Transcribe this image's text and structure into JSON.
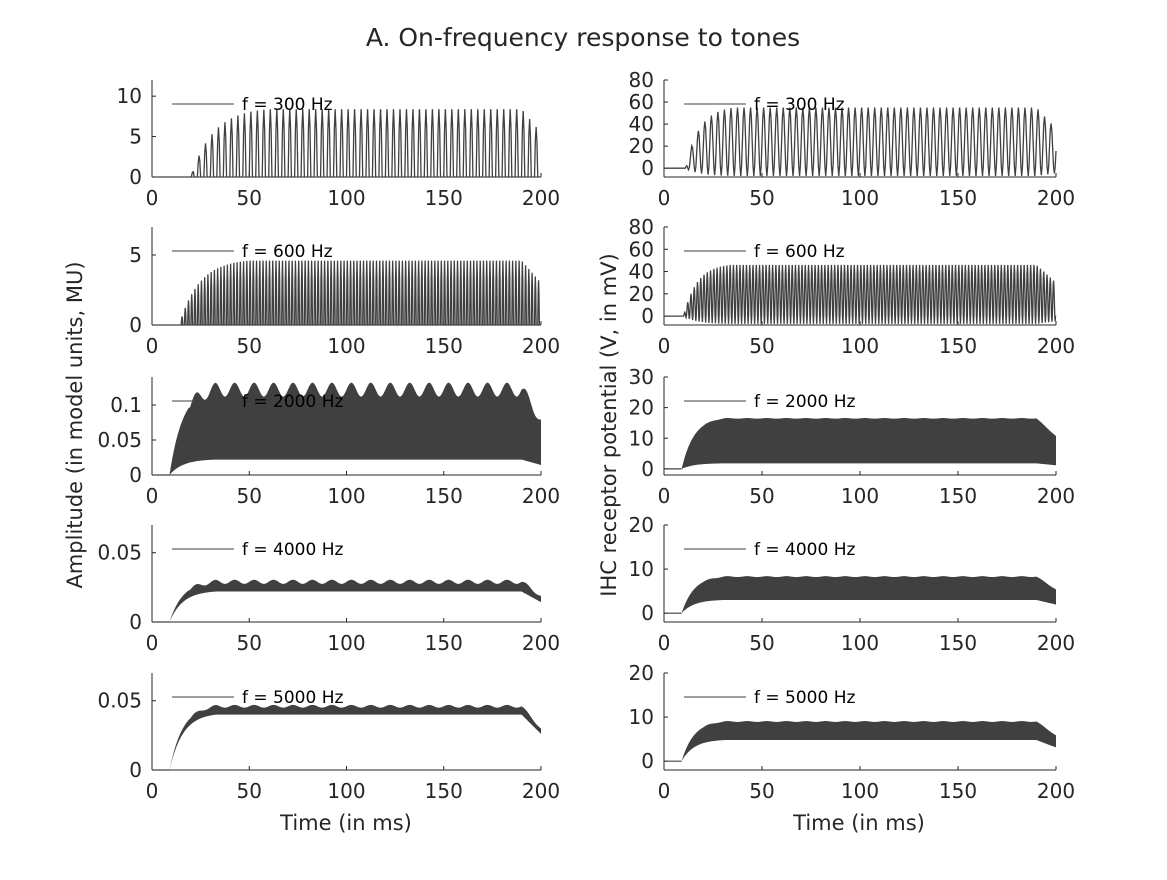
{
  "figure": {
    "title": "A. On-frequency response to tones",
    "left_ylabel": "Amplitude (in model units, MU)",
    "right_ylabel": "IHC receptor potential (V, in mV)",
    "xlabel": "Time (in ms)"
  },
  "chart_data": [
    {
      "type": "line",
      "id": "L300",
      "column": "left",
      "legend": "f = 300 Hz",
      "frequency_hz": 300,
      "xlim": [
        0,
        200
      ],
      "ylim": [
        0,
        12
      ],
      "xticks": [
        0,
        50,
        100,
        150,
        200
      ],
      "yticks": [
        0,
        5,
        10
      ],
      "onset_ms": 20,
      "rise_ms": 40,
      "offset_ms": 200,
      "peak": 8.4,
      "trough": 0,
      "ripple": 0
    },
    {
      "type": "line",
      "id": "L600",
      "column": "left",
      "legend": "f = 600 Hz",
      "frequency_hz": 600,
      "xlim": [
        0,
        200
      ],
      "ylim": [
        0,
        7
      ],
      "xticks": [
        0,
        50,
        100,
        150,
        200
      ],
      "yticks": [
        0,
        5
      ],
      "onset_ms": 14,
      "rise_ms": 36,
      "offset_ms": 200,
      "peak": 4.6,
      "trough": 0,
      "ripple": 0
    },
    {
      "type": "area",
      "id": "L2000",
      "column": "left",
      "legend": "f = 2000 Hz",
      "frequency_hz": 2000,
      "xlim": [
        0,
        200
      ],
      "ylim": [
        0,
        0.14
      ],
      "xticks": [
        0,
        50,
        100,
        150,
        200
      ],
      "yticks": [
        0,
        0.05,
        0.1
      ],
      "onset_ms": 9,
      "rise_ms": 24,
      "offset_ms": 200,
      "peak": 0.122,
      "trough": 0.022,
      "ripple": 0.01
    },
    {
      "type": "area",
      "id": "L4000",
      "column": "left",
      "legend": "f = 4000 Hz",
      "frequency_hz": 4000,
      "xlim": [
        0,
        200
      ],
      "ylim": [
        0,
        0.07
      ],
      "xticks": [
        0,
        50,
        100,
        150,
        200
      ],
      "yticks": [
        0,
        0.05
      ],
      "onset_ms": 9,
      "rise_ms": 24,
      "offset_ms": 200,
      "peak": 0.029,
      "trough": 0.022,
      "ripple": 0.0015
    },
    {
      "type": "area",
      "id": "L5000",
      "column": "left",
      "legend": "f = 5000 Hz",
      "frequency_hz": 5000,
      "xlim": [
        0,
        200
      ],
      "ylim": [
        0,
        0.07
      ],
      "xticks": [
        0,
        50,
        100,
        150,
        200
      ],
      "yticks": [
        0,
        0.05
      ],
      "onset_ms": 9,
      "rise_ms": 24,
      "offset_ms": 200,
      "peak": 0.046,
      "trough": 0.04,
      "ripple": 0.001
    },
    {
      "type": "line",
      "id": "R300",
      "column": "right",
      "legend": "f = 300 Hz",
      "frequency_hz": 300,
      "xlim": [
        0,
        200
      ],
      "ylim": [
        -8,
        80
      ],
      "xticks": [
        0,
        50,
        100,
        150,
        200
      ],
      "yticks": [
        0,
        20,
        40,
        60,
        80
      ],
      "onset_ms": 11,
      "rise_ms": 25,
      "offset_ms": 200,
      "peak": 55,
      "trough": -7,
      "ripple": 0
    },
    {
      "type": "line",
      "id": "R600",
      "column": "right",
      "legend": "f = 600 Hz",
      "frequency_hz": 600,
      "xlim": [
        0,
        200
      ],
      "ylim": [
        -8,
        80
      ],
      "xticks": [
        0,
        50,
        100,
        150,
        200
      ],
      "yticks": [
        0,
        20,
        40,
        60,
        80
      ],
      "onset_ms": 10,
      "rise_ms": 24,
      "offset_ms": 200,
      "peak": 46,
      "trough": -7,
      "ripple": 0
    },
    {
      "type": "area",
      "id": "R2000",
      "column": "right",
      "legend": "f = 2000 Hz",
      "frequency_hz": 2000,
      "xlim": [
        0,
        200
      ],
      "ylim": [
        -2,
        30
      ],
      "xticks": [
        0,
        50,
        100,
        150,
        200
      ],
      "yticks": [
        0,
        10,
        20,
        30
      ],
      "onset_ms": 9,
      "rise_ms": 22,
      "offset_ms": 200,
      "peak": 16.5,
      "trough": 1.8,
      "ripple": 0.1
    },
    {
      "type": "area",
      "id": "R4000",
      "column": "right",
      "legend": "f = 4000 Hz",
      "frequency_hz": 4000,
      "xlim": [
        0,
        200
      ],
      "ylim": [
        -2,
        20
      ],
      "xticks": [
        0,
        50,
        100,
        150,
        200
      ],
      "yticks": [
        0,
        10,
        20
      ],
      "onset_ms": 9,
      "rise_ms": 22,
      "offset_ms": 200,
      "peak": 8.3,
      "trough": 3.0,
      "ripple": 0.1
    },
    {
      "type": "area",
      "id": "R5000",
      "column": "right",
      "legend": "f = 5000 Hz",
      "frequency_hz": 5000,
      "xlim": [
        0,
        200
      ],
      "ylim": [
        -2,
        20
      ],
      "xticks": [
        0,
        50,
        100,
        150,
        200
      ],
      "yticks": [
        0,
        10,
        20
      ],
      "onset_ms": 9,
      "rise_ms": 22,
      "offset_ms": 200,
      "peak": 9.0,
      "trough": 4.8,
      "ripple": 0.1
    }
  ]
}
